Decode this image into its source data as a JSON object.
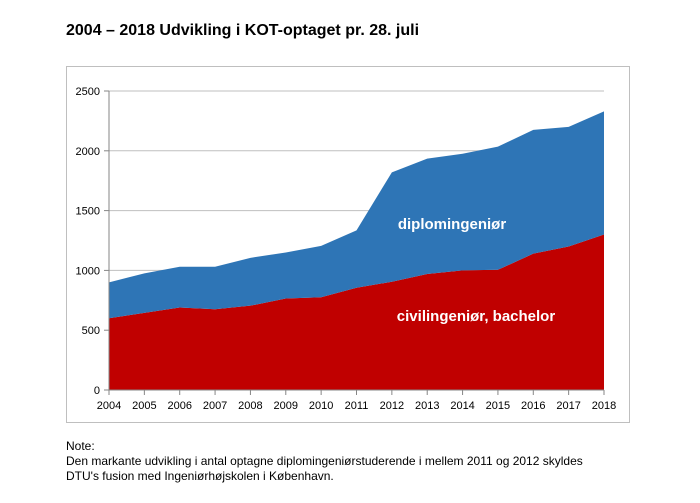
{
  "title": "2004 – 2018 Udvikling i KOT-optaget pr. 28. juli",
  "note": {
    "heading": "Note:",
    "lines": [
      "Den markante udvikling i antal optagne diplomingeniørstuderende i mellem 2011 og 2012 skyldes",
      "DTU's fusion med Ingeniørhøjskolen i København."
    ]
  },
  "chart_data": {
    "type": "area",
    "stacked": true,
    "title": "2004 – 2018 Udvikling i KOT-optaget pr. 28. juli",
    "x": [
      2004,
      2005,
      2006,
      2007,
      2008,
      2009,
      2010,
      2011,
      2012,
      2013,
      2014,
      2015,
      2016,
      2017,
      2018
    ],
    "ylim": [
      0,
      2500
    ],
    "yticks": [
      0,
      500,
      1000,
      1500,
      2000,
      2500
    ],
    "grid": true,
    "legend": "inside-labels",
    "series": [
      {
        "name": "civilingeniør, bachelor",
        "color": "#c00000",
        "values": [
          600,
          645,
          690,
          675,
          705,
          765,
          775,
          855,
          905,
          970,
          1000,
          1005,
          1140,
          1200,
          1300
        ]
      },
      {
        "name": "diplomingeniør",
        "color": "#2e75b6",
        "values": [
          300,
          330,
          340,
          355,
          400,
          385,
          430,
          480,
          915,
          965,
          975,
          1030,
          1035,
          1000,
          1030
        ]
      }
    ],
    "labels": {
      "diplom": "diplomingeniør",
      "civil": "civilingeniør, bachelor"
    }
  }
}
